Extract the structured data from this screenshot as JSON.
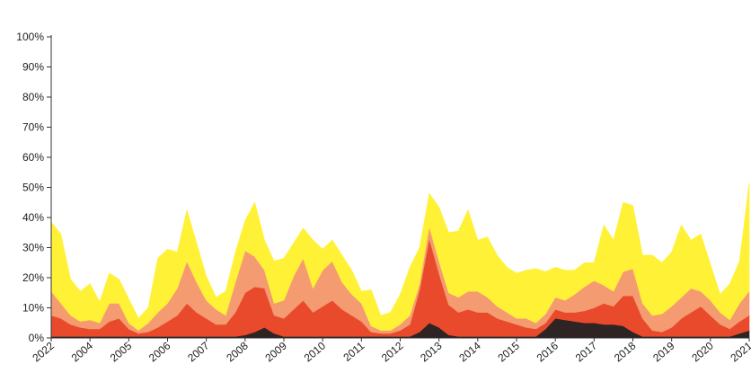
{
  "chart_data": {
    "type": "area",
    "stacked": true,
    "title": "",
    "xlabel": "",
    "ylabel": "",
    "ylim": [
      0,
      100
    ],
    "y_tick_labels": [
      "0%",
      "10%",
      "20%",
      "30%",
      "40%",
      "50%",
      "60%",
      "70%",
      "80%",
      "90%",
      "100%"
    ],
    "y_tick_values": [
      0,
      10,
      20,
      30,
      40,
      50,
      60,
      70,
      80,
      90,
      100
    ],
    "x_tick_labels": [
      "2022",
      "2004",
      "2005",
      "2006",
      "2007",
      "2008",
      "2009",
      "2010",
      "2011",
      "2012",
      "2013",
      "2014",
      "2015",
      "2016",
      "2017",
      "2018",
      "2019",
      "2020",
      "2021"
    ],
    "x": [
      0,
      0.25,
      0.5,
      0.75,
      1,
      1.25,
      1.5,
      1.75,
      2,
      2.25,
      2.5,
      2.75,
      3,
      3.25,
      3.5,
      3.75,
      4,
      4.25,
      4.5,
      4.75,
      5,
      5.25,
      5.5,
      5.75,
      6,
      6.25,
      6.5,
      6.75,
      7,
      7.25,
      7.5,
      7.75,
      8,
      8.25,
      8.5,
      8.75,
      9,
      9.25,
      9.5,
      9.75,
      10,
      10.25,
      10.5,
      10.75,
      11,
      11.25,
      11.5,
      11.75,
      12,
      12.25,
      12.5,
      12.75,
      13,
      13.25,
      13.5,
      13.75,
      14,
      14.25,
      14.5,
      14.75,
      15,
      15.25,
      15.5,
      15.75,
      16,
      16.25,
      16.5,
      16.75,
      17,
      17.25,
      17.5,
      17.75,
      18
    ],
    "series": [
      {
        "color": "#2e2424",
        "values": [
          0.5,
          0.5,
          0.5,
          0.5,
          0.5,
          0.5,
          0.5,
          0.5,
          0.5,
          0.5,
          0.5,
          0.5,
          0.5,
          0.5,
          0.5,
          0.5,
          0.5,
          0.5,
          0.5,
          0.5,
          1,
          2,
          3.5,
          1.5,
          0.5,
          0.5,
          0.5,
          0.5,
          0.5,
          0.5,
          0.5,
          0.5,
          0.5,
          0.5,
          0.5,
          0.5,
          0.5,
          0.5,
          2,
          5,
          3.5,
          1,
          0.5,
          0.5,
          0.5,
          0.5,
          0.5,
          0.5,
          0.5,
          0.5,
          0.5,
          3,
          6.5,
          6,
          5.5,
          5,
          5,
          4.5,
          4.5,
          4,
          2,
          0.5,
          0.5,
          0.5,
          0.5,
          0.5,
          0.5,
          0.5,
          0.5,
          0.5,
          0.5,
          1.5,
          2.5
        ]
      },
      {
        "color": "#ea4a2c",
        "values": [
          7,
          6,
          4,
          3,
          2.5,
          2.5,
          5,
          6,
          2.5,
          1,
          1.5,
          3,
          5,
          7,
          11,
          8,
          6,
          4,
          4,
          8,
          14,
          15,
          13,
          6,
          6,
          9,
          12,
          8,
          10,
          12,
          9,
          7,
          5,
          1.5,
          1,
          1,
          2,
          4,
          14,
          28,
          18,
          10,
          8,
          9,
          8,
          8,
          6,
          5,
          4,
          3,
          2.5,
          2,
          3,
          2.5,
          3,
          4,
          5,
          7,
          6,
          10,
          12,
          6,
          2,
          1.5,
          3,
          6,
          8,
          10,
          7,
          4,
          2.5,
          4,
          5
        ]
      },
      {
        "color": "#f49b72",
        "values": [
          8,
          5,
          3,
          2,
          3,
          2,
          6,
          5,
          2,
          1,
          3,
          5,
          6,
          9,
          14,
          10,
          6,
          5,
          3,
          10,
          14,
          10,
          6,
          4,
          6,
          11,
          14,
          8,
          12,
          13,
          9,
          7,
          6,
          2,
          1,
          1,
          2,
          3,
          2,
          4,
          4,
          4,
          5,
          6,
          7,
          5,
          4,
          3,
          2,
          3,
          2,
          3,
          4,
          4,
          6,
          8,
          9,
          6,
          5,
          8,
          9,
          5,
          5,
          6,
          7,
          7,
          8,
          5,
          5,
          4,
          3,
          6,
          8
        ]
      },
      {
        "color": "#fff136",
        "values": [
          23,
          23,
          12,
          10,
          12,
          7,
          10,
          8,
          8,
          4,
          5,
          18,
          18,
          12,
          17,
          13,
          8,
          4,
          8,
          10,
          10,
          18,
          10,
          14,
          14,
          11,
          10,
          16,
          7,
          7,
          9,
          8,
          4,
          12,
          5,
          6,
          10,
          16,
          12,
          11,
          18,
          20,
          22,
          27,
          17,
          20,
          17,
          15,
          15,
          16,
          18,
          14,
          10,
          10,
          8,
          8,
          6,
          20,
          17,
          23,
          21,
          16,
          20,
          17,
          18,
          24,
          16,
          19,
          12,
          6,
          12,
          14,
          36
        ]
      }
    ]
  }
}
